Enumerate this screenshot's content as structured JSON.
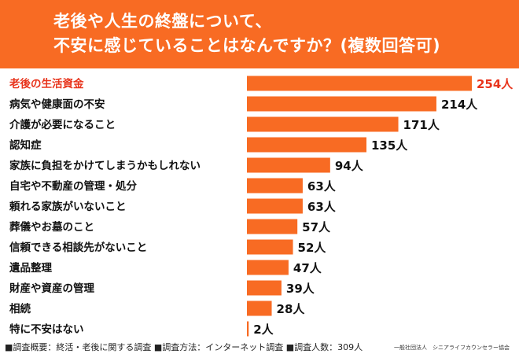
{
  "title": [
    "老後や人生の終盤について、",
    "不安に感じていることはなんですか？(複数回答可)"
  ],
  "chart_data": {
    "type": "bar",
    "orientation": "horizontal",
    "categories": [
      "老後の生活資金",
      "病気や健康面の不安",
      "介護が必要になること",
      "認知症",
      "家族に負担をかけてしまうかもしれない",
      "自宅や不動産の管理・処分",
      "頼れる家族がいないこと",
      "葬儀やお墓のこと",
      "信頼できる相談先がないこと",
      "遺品整理",
      "財産や資産の管理",
      "相続",
      "特に不安はない"
    ],
    "values": [
      254,
      214,
      171,
      135,
      94,
      63,
      63,
      57,
      52,
      47,
      39,
      28,
      2
    ],
    "value_labels": [
      "254人",
      "214人",
      "171人",
      "135人",
      "94人",
      "63人",
      "63人",
      "57人",
      "52人",
      "47人",
      "39人",
      "28人",
      "2人"
    ],
    "unit": "人",
    "highlight_index": 0,
    "xlim": [
      0,
      254
    ],
    "grid": false,
    "colors": {
      "bar": "#f86b23",
      "highlight_text": "#e8341c",
      "text": "#111111"
    }
  },
  "footer": "■調査概要：終活・老後に関する調査 ■調査方法：インターネット調査 ■調査人数：309人",
  "organization": "一般社団法人　シニアライフカウンセラー協会"
}
